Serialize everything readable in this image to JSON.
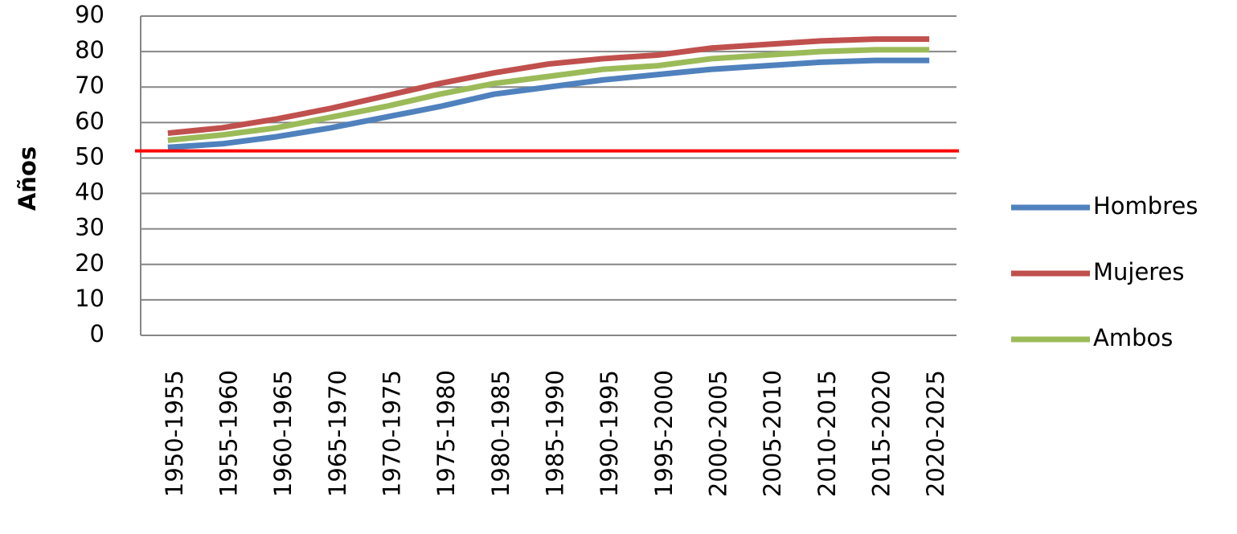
{
  "chart_data": {
    "type": "line",
    "y_label": "Años",
    "categories": [
      "1950-1955",
      "1955-1960",
      "1960-1965",
      "1965-1970",
      "1970-1975",
      "1975-1980",
      "1980-1985",
      "1985-1990",
      "1990-1995",
      "1995-2000",
      "2000-2005",
      "2005-2010",
      "2010-2015",
      "2015-2020",
      "2020-2025"
    ],
    "series": [
      {
        "name": "Hombres",
        "color": "#4f81bd",
        "values": [
          53,
          54,
          56,
          58.5,
          61.5,
          64.5,
          68,
          70,
          72,
          73.5,
          75,
          76,
          77,
          77.5,
          77.5
        ]
      },
      {
        "name": "Mujeres",
        "color": "#c0504d",
        "values": [
          57,
          58.5,
          61,
          64,
          67.5,
          71,
          74,
          76.5,
          78,
          79,
          81,
          82,
          83,
          83.5,
          83.5
        ]
      },
      {
        "name": "Ambos",
        "color": "#9bbb59",
        "values": [
          55,
          56.5,
          58.5,
          61.5,
          64.5,
          68,
          71,
          73,
          75,
          76,
          78,
          79,
          80,
          80.5,
          80.5
        ]
      }
    ],
    "reference_line": {
      "value": 52,
      "color": "#ff0000"
    },
    "ylim": [
      0,
      90
    ],
    "yticks": [
      0,
      10,
      20,
      30,
      40,
      50,
      60,
      70,
      80,
      90
    ],
    "grid": true,
    "legend": "right"
  }
}
